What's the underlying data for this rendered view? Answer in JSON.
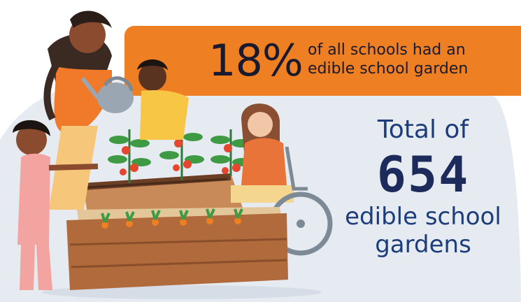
{
  "banner": {
    "percent": "18%",
    "text_line1": "of all schools had an",
    "text_line2": "edible school garden"
  },
  "total": {
    "label": "Total of",
    "number": "654",
    "desc_line1": "edible school",
    "desc_line2": "gardens"
  },
  "colors": {
    "banner": "#ee7f22",
    "background_blob": "#e6ebf1",
    "heading_blue": "#1d3d7a",
    "number_navy": "#1d2a5c"
  },
  "illustration": {
    "subject": "garden-scene-icon"
  }
}
